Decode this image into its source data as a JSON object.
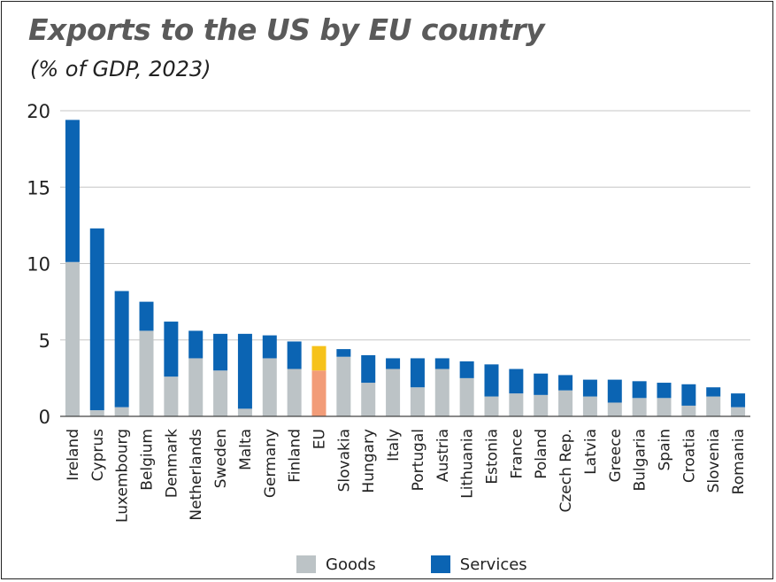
{
  "title": "Exports to the US by EU country",
  "subtitle": "(% of GDP, 2023)",
  "colors": {
    "goods": "#bcc3c6",
    "services": "#0b64b3",
    "eu_goods": "#f29c78",
    "eu_services": "#f6c21a",
    "grid": "#c6c6c6",
    "axis": "#444444"
  },
  "legend": {
    "goods": "Goods",
    "services": "Services"
  },
  "chart_data": {
    "type": "bar",
    "stacked": true,
    "categories": [
      "Ireland",
      "Cyprus",
      "Luxembourg",
      "Belgium",
      "Denmark",
      "Netherlands",
      "Sweden",
      "Malta",
      "Germany",
      "Finland",
      "EU",
      "Slovakia",
      "Hungary",
      "Italy",
      "Portugal",
      "Austria",
      "Lithuania",
      "Estonia",
      "France",
      "Poland",
      "Czech Rep.",
      "Latvia",
      "Greece",
      "Bulgaria",
      "Spain",
      "Croatia",
      "Slovenia",
      "Romania"
    ],
    "highlight_category": "EU",
    "series": [
      {
        "name": "Goods",
        "values": [
          10.1,
          0.4,
          0.6,
          5.6,
          2.6,
          3.8,
          3.0,
          0.5,
          3.8,
          3.1,
          3.0,
          3.9,
          2.2,
          3.1,
          1.9,
          3.1,
          2.5,
          1.3,
          1.5,
          1.4,
          1.7,
          1.3,
          0.9,
          1.2,
          1.2,
          0.7,
          1.3,
          0.6
        ]
      },
      {
        "name": "Services",
        "values": [
          9.3,
          11.9,
          7.6,
          1.9,
          3.6,
          1.8,
          2.4,
          4.9,
          1.5,
          1.8,
          1.6,
          0.5,
          1.8,
          0.7,
          1.9,
          0.7,
          1.1,
          2.1,
          1.6,
          1.4,
          1.0,
          1.1,
          1.5,
          1.1,
          1.0,
          1.4,
          0.6,
          0.9
        ]
      }
    ],
    "y_ticks": [
      0,
      5,
      10,
      15,
      20
    ],
    "ylim": [
      0,
      20
    ],
    "grid": true,
    "legend_position": "bottom-center"
  }
}
